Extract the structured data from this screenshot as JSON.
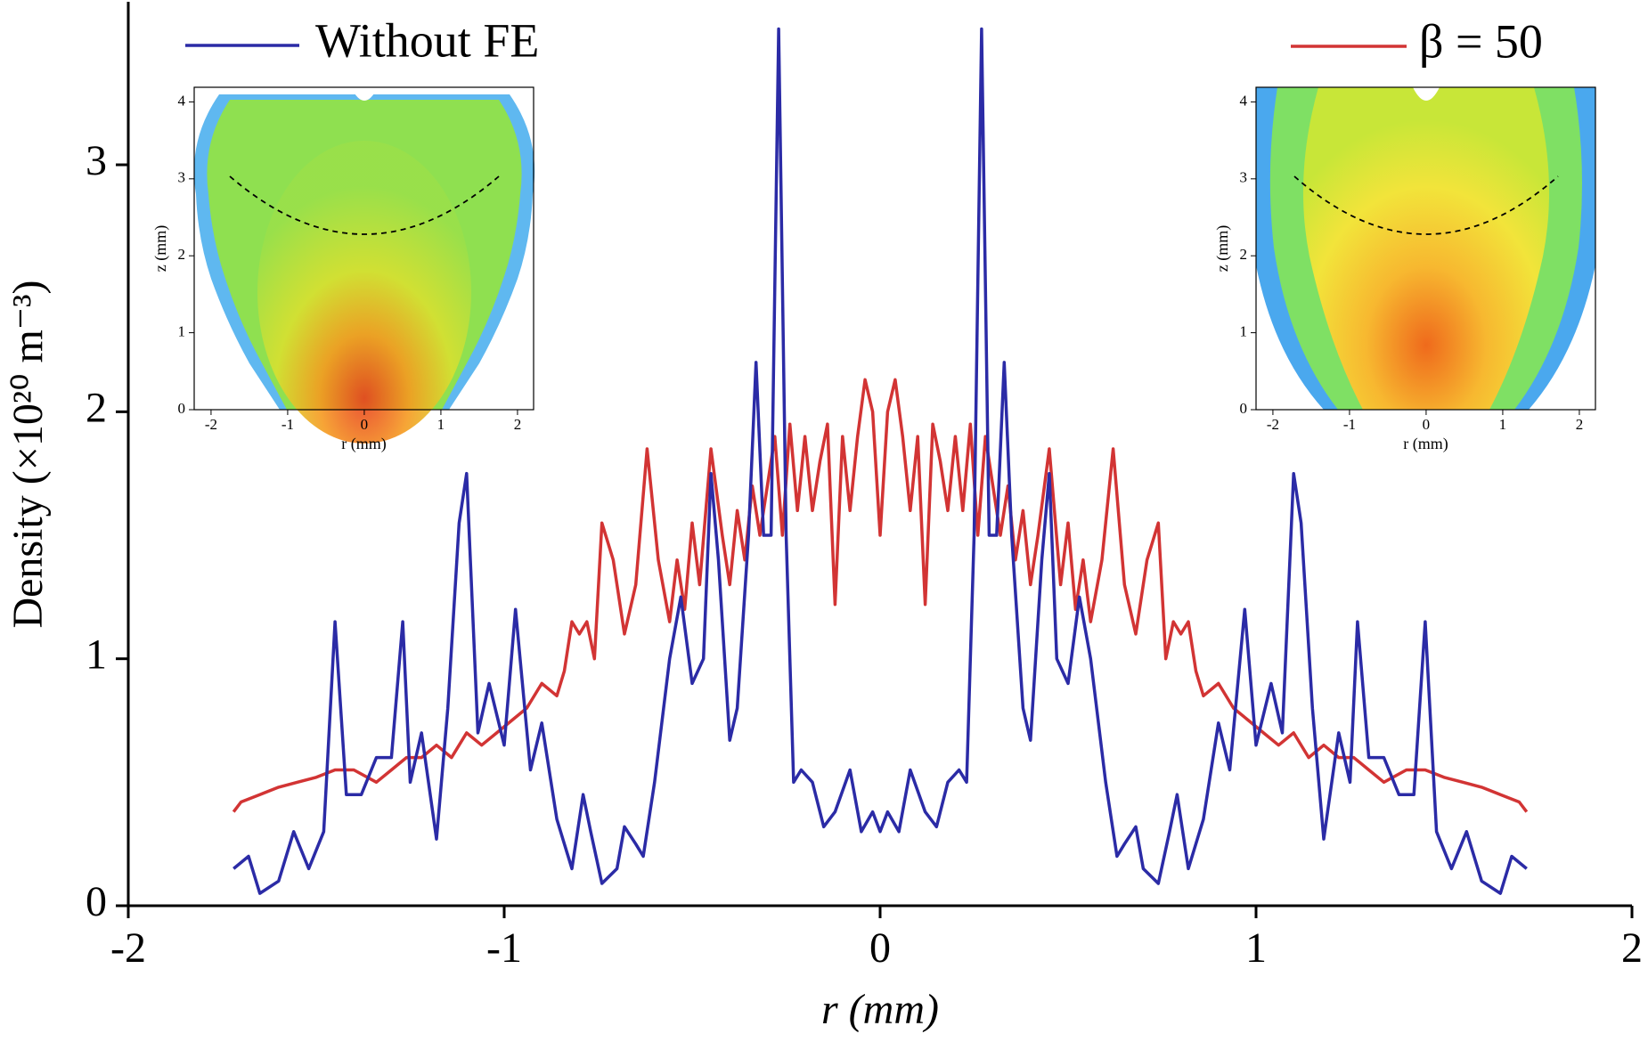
{
  "chart_data": {
    "type": "line",
    "xlabel": "r (mm)",
    "ylabel": "Density (×10²⁰ m⁻³)",
    "xlim": [
      -2,
      2
    ],
    "ylim": [
      0,
      3.66
    ],
    "xticks": [
      -2,
      -1,
      0,
      1,
      2
    ],
    "yticks": [
      0,
      1,
      2,
      3
    ],
    "series": [
      {
        "name": "Without FE",
        "color": "#2b2ba6",
        "x": [
          -1.72,
          -1.68,
          -1.65,
          -1.6,
          -1.56,
          -1.52,
          -1.48,
          -1.45,
          -1.42,
          -1.38,
          -1.34,
          -1.3,
          -1.27,
          -1.25,
          -1.22,
          -1.18,
          -1.15,
          -1.12,
          -1.1,
          -1.07,
          -1.04,
          -1.0,
          -0.97,
          -0.93,
          -0.9,
          -0.86,
          -0.82,
          -0.79,
          -0.77,
          -0.74,
          -0.7,
          -0.68,
          -0.65,
          -0.63,
          -0.6,
          -0.56,
          -0.53,
          -0.5,
          -0.47,
          -0.45,
          -0.43,
          -0.4,
          -0.38,
          -0.35,
          -0.33,
          -0.31,
          -0.29,
          -0.27,
          -0.25,
          -0.23,
          -0.21,
          -0.18,
          -0.15,
          -0.12,
          -0.08,
          -0.05,
          -0.02,
          0,
          0.02,
          0.05,
          0.08,
          0.12,
          0.15,
          0.18,
          0.21,
          0.23,
          0.25,
          0.27,
          0.29,
          0.31,
          0.33,
          0.35,
          0.38,
          0.4,
          0.43,
          0.45,
          0.47,
          0.5,
          0.53,
          0.56,
          0.6,
          0.63,
          0.65,
          0.68,
          0.7,
          0.74,
          0.77,
          0.79,
          0.82,
          0.86,
          0.9,
          0.93,
          0.97,
          1.0,
          1.04,
          1.07,
          1.1,
          1.12,
          1.15,
          1.18,
          1.22,
          1.25,
          1.27,
          1.3,
          1.34,
          1.38,
          1.42,
          1.45,
          1.48,
          1.52,
          1.56,
          1.6,
          1.65,
          1.68,
          1.72
        ],
        "values": [
          0.15,
          0.2,
          0.05,
          0.1,
          0.3,
          0.15,
          0.3,
          1.15,
          0.45,
          0.45,
          0.6,
          0.6,
          1.15,
          0.5,
          0.7,
          0.27,
          0.8,
          1.55,
          1.75,
          0.7,
          0.9,
          0.65,
          1.2,
          0.55,
          0.74,
          0.35,
          0.15,
          0.45,
          0.3,
          0.09,
          0.15,
          0.32,
          0.25,
          0.2,
          0.5,
          1.0,
          1.25,
          0.9,
          1.0,
          1.75,
          1.4,
          0.67,
          0.8,
          1.5,
          2.2,
          1.5,
          1.5,
          3.55,
          1.5,
          0.5,
          0.55,
          0.5,
          0.32,
          0.38,
          0.55,
          0.3,
          0.38,
          0.3,
          0.38,
          0.3,
          0.55,
          0.38,
          0.32,
          0.5,
          0.55,
          0.5,
          1.5,
          3.55,
          1.5,
          1.5,
          2.2,
          1.5,
          0.8,
          0.67,
          1.4,
          1.75,
          1.0,
          0.9,
          1.25,
          1.0,
          0.5,
          0.2,
          0.25,
          0.32,
          0.15,
          0.09,
          0.3,
          0.45,
          0.15,
          0.35,
          0.74,
          0.55,
          1.2,
          0.65,
          0.9,
          0.7,
          1.75,
          1.55,
          0.8,
          0.27,
          0.7,
          0.5,
          1.15,
          0.6,
          0.6,
          0.45,
          0.45,
          1.15,
          0.3,
          0.15,
          0.3,
          0.1,
          0.05,
          0.2,
          0.15
        ]
      },
      {
        "name": "β = 50",
        "color": "#d23434",
        "x": [
          -1.72,
          -1.7,
          -1.65,
          -1.6,
          -1.55,
          -1.5,
          -1.45,
          -1.4,
          -1.34,
          -1.3,
          -1.26,
          -1.22,
          -1.18,
          -1.14,
          -1.1,
          -1.06,
          -1.02,
          -0.98,
          -0.94,
          -0.9,
          -0.86,
          -0.84,
          -0.82,
          -0.8,
          -0.78,
          -0.76,
          -0.74,
          -0.71,
          -0.68,
          -0.65,
          -0.62,
          -0.59,
          -0.56,
          -0.54,
          -0.52,
          -0.5,
          -0.48,
          -0.45,
          -0.42,
          -0.4,
          -0.38,
          -0.36,
          -0.34,
          -0.32,
          -0.3,
          -0.28,
          -0.26,
          -0.24,
          -0.22,
          -0.2,
          -0.18,
          -0.16,
          -0.14,
          -0.12,
          -0.1,
          -0.08,
          -0.06,
          -0.04,
          -0.02,
          0,
          0.02,
          0.04,
          0.06,
          0.08,
          0.1,
          0.12,
          0.14,
          0.16,
          0.18,
          0.2,
          0.22,
          0.24,
          0.26,
          0.28,
          0.3,
          0.32,
          0.34,
          0.36,
          0.38,
          0.4,
          0.42,
          0.45,
          0.48,
          0.5,
          0.52,
          0.54,
          0.56,
          0.59,
          0.62,
          0.65,
          0.68,
          0.71,
          0.74,
          0.76,
          0.78,
          0.8,
          0.82,
          0.84,
          0.86,
          0.9,
          0.94,
          0.98,
          1.02,
          1.06,
          1.1,
          1.14,
          1.18,
          1.22,
          1.26,
          1.3,
          1.34,
          1.4,
          1.45,
          1.5,
          1.55,
          1.6,
          1.65,
          1.7,
          1.72
        ],
        "values": [
          0.38,
          0.42,
          0.45,
          0.48,
          0.5,
          0.52,
          0.55,
          0.55,
          0.5,
          0.55,
          0.6,
          0.6,
          0.65,
          0.6,
          0.7,
          0.65,
          0.7,
          0.75,
          0.8,
          0.9,
          0.85,
          0.95,
          1.15,
          1.1,
          1.15,
          1.0,
          1.55,
          1.4,
          1.1,
          1.3,
          1.85,
          1.4,
          1.15,
          1.4,
          1.2,
          1.55,
          1.3,
          1.85,
          1.5,
          1.3,
          1.6,
          1.4,
          1.7,
          1.5,
          1.7,
          1.9,
          1.5,
          1.95,
          1.6,
          1.9,
          1.6,
          1.8,
          1.95,
          1.22,
          1.9,
          1.6,
          1.9,
          2.13,
          2.0,
          1.5,
          2.0,
          2.13,
          1.9,
          1.6,
          1.9,
          1.22,
          1.95,
          1.8,
          1.6,
          1.9,
          1.6,
          1.95,
          1.5,
          1.9,
          1.7,
          1.5,
          1.7,
          1.4,
          1.6,
          1.3,
          1.5,
          1.85,
          1.3,
          1.55,
          1.2,
          1.4,
          1.15,
          1.4,
          1.85,
          1.3,
          1.1,
          1.4,
          1.55,
          1.0,
          1.15,
          1.1,
          1.15,
          0.95,
          0.85,
          0.9,
          0.8,
          0.75,
          0.7,
          0.65,
          0.7,
          0.6,
          0.65,
          0.6,
          0.6,
          0.55,
          0.5,
          0.55,
          0.55,
          0.52,
          0.5,
          0.48,
          0.45,
          0.42,
          0.38
        ]
      }
    ],
    "insets": [
      {
        "xlabel": "r (mm)",
        "ylabel": "z (mm)",
        "xlim": [
          -2.22,
          2.21
        ],
        "ylim": [
          0,
          4.19
        ],
        "xticks": [
          -2,
          -1,
          0,
          1,
          2
        ],
        "yticks": [
          0,
          1,
          2,
          3,
          4
        ]
      },
      {
        "xlabel": "r (mm)",
        "ylabel": "z (mm)",
        "xlim": [
          -2.22,
          2.21
        ],
        "ylim": [
          0,
          4.19
        ],
        "xticks": [
          -2,
          -1,
          0,
          1,
          2
        ],
        "yticks": [
          0,
          1,
          2,
          3,
          4
        ]
      }
    ]
  }
}
